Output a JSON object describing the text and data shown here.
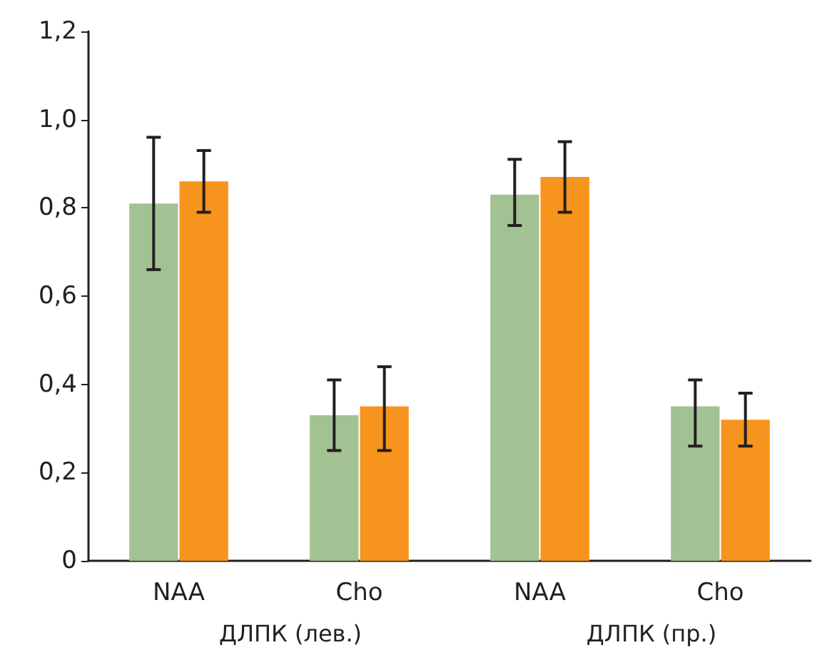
{
  "chart_data": {
    "type": "bar",
    "categories": [
      "NAA",
      "Cho",
      "NAA",
      "Cho"
    ],
    "series": [
      {
        "color": "#a3c293",
        "values": [
          0.81,
          0.33,
          0.83,
          0.35
        ],
        "errors": [
          [
            0.66,
            0.96
          ],
          [
            0.25,
            0.41
          ],
          [
            0.76,
            0.91
          ],
          [
            0.26,
            0.41
          ]
        ]
      },
      {
        "color": "#f7941d",
        "values": [
          0.86,
          0.35,
          0.87,
          0.32
        ],
        "errors": [
          [
            0.79,
            0.93
          ],
          [
            0.25,
            0.44
          ],
          [
            0.79,
            0.95
          ],
          [
            0.26,
            0.38
          ]
        ]
      }
    ],
    "annotations": [
      "ДЛПК (лев.)",
      "ДЛПК (пр.)"
    ],
    "ylim": [
      0,
      1.2
    ],
    "yticks": [
      {
        "value": 0,
        "label": "0"
      },
      {
        "value": 0.2,
        "label": "0,2"
      },
      {
        "value": 0.4,
        "label": "0,4"
      },
      {
        "value": 0.6,
        "label": "0,6"
      },
      {
        "value": 0.8,
        "label": "0,8"
      },
      {
        "value": 1.0,
        "label": "1,0"
      },
      {
        "value": 1.2,
        "label": "1,2"
      }
    ],
    "grid": false
  }
}
